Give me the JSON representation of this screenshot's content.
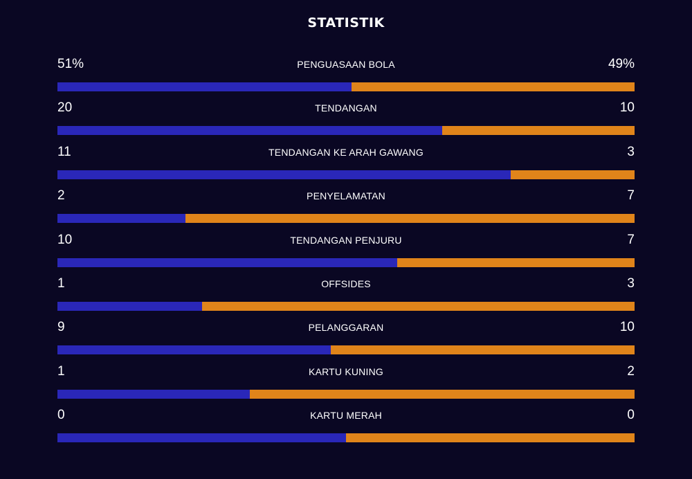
{
  "title": "STATISTIK",
  "colors": {
    "background": "#0a0723",
    "home": "#2a27b8",
    "away": "#e0841a",
    "text": "#ffffff"
  },
  "stats": [
    {
      "label": "PENGUASAAN BOLA",
      "home": "51%",
      "away": "49%",
      "home_value": 51,
      "away_value": 49
    },
    {
      "label": "TENDANGAN",
      "home": "20",
      "away": "10",
      "home_value": 20,
      "away_value": 10
    },
    {
      "label": "TENDANGAN KE ARAH GAWANG",
      "home": "11",
      "away": "3",
      "home_value": 11,
      "away_value": 3
    },
    {
      "label": "PENYELAMATAN",
      "home": "2",
      "away": "7",
      "home_value": 2,
      "away_value": 7
    },
    {
      "label": "TENDANGAN PENJURU",
      "home": "10",
      "away": "7",
      "home_value": 10,
      "away_value": 7
    },
    {
      "label": "OFFSIDES",
      "home": "1",
      "away": "3",
      "home_value": 1,
      "away_value": 3
    },
    {
      "label": "PELANGGARAN",
      "home": "9",
      "away": "10",
      "home_value": 9,
      "away_value": 10
    },
    {
      "label": "KARTU KUNING",
      "home": "1",
      "away": "2",
      "home_value": 1,
      "away_value": 2
    },
    {
      "label": "KARTU MERAH",
      "home": "0",
      "away": "0",
      "home_value": 0,
      "away_value": 0
    }
  ]
}
